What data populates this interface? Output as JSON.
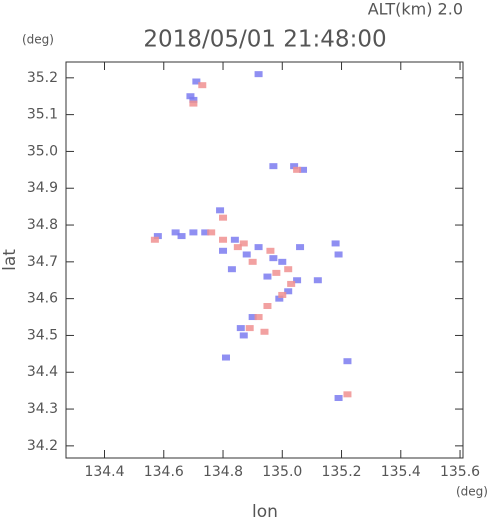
{
  "chart_data": {
    "type": "scatter",
    "title": "2018/05/01 21:48:00",
    "subtitle": "ALT(km) 2.0",
    "x_label": "lon",
    "y_label": "lat",
    "x_unit": "(deg)",
    "y_unit": "(deg)",
    "xlim": [
      134.27,
      135.61
    ],
    "ylim": [
      34.167,
      35.243
    ],
    "xticks": [
      134.4,
      134.6,
      134.8,
      {
        "value": 135.0,
        "label": "135.0"
      },
      135.2,
      135.4,
      135.6
    ],
    "yticks": [
      34.2,
      34.3,
      34.4,
      34.5,
      34.6,
      34.7,
      34.8,
      34.9,
      {
        "value": 35.0,
        "label": "35.0"
      },
      35.1,
      35.2
    ],
    "grid": false,
    "series": [
      {
        "color": "#7b7bf0",
        "x": [
          134.71,
          134.7,
          134.69,
          134.92,
          134.97,
          135.04,
          135.07,
          134.58,
          134.64,
          134.66,
          134.7,
          134.74,
          134.79,
          134.84,
          134.88,
          134.92,
          134.97,
          135.0,
          135.06,
          135.18,
          135.19,
          135.12,
          134.99,
          135.05,
          134.86,
          134.87,
          134.81,
          135.22,
          135.19,
          134.8,
          134.83,
          135.02,
          134.95,
          134.9
        ],
        "values": [
          35.19,
          35.14,
          35.15,
          35.21,
          34.96,
          34.96,
          34.95,
          34.77,
          34.78,
          34.77,
          34.78,
          34.78,
          34.84,
          34.76,
          34.72,
          34.74,
          34.71,
          34.7,
          34.74,
          34.75,
          34.72,
          34.65,
          34.6,
          34.65,
          34.52,
          34.5,
          34.44,
          34.43,
          34.33,
          34.73,
          34.68,
          34.62,
          34.66,
          34.55
        ]
      },
      {
        "color": "#f09090",
        "x": [
          134.7,
          134.73,
          134.76,
          134.8,
          134.85,
          134.9,
          134.98,
          135.02,
          135.03,
          134.95,
          134.92,
          134.89,
          134.94,
          134.8,
          135.05,
          134.57,
          135.22,
          135.0,
          134.87,
          134.96
        ],
        "values": [
          35.13,
          35.18,
          34.78,
          34.76,
          34.74,
          34.7,
          34.67,
          34.68,
          34.64,
          34.58,
          34.55,
          34.52,
          34.51,
          34.82,
          34.95,
          34.76,
          34.34,
          34.61,
          34.75,
          34.73
        ]
      }
    ]
  }
}
